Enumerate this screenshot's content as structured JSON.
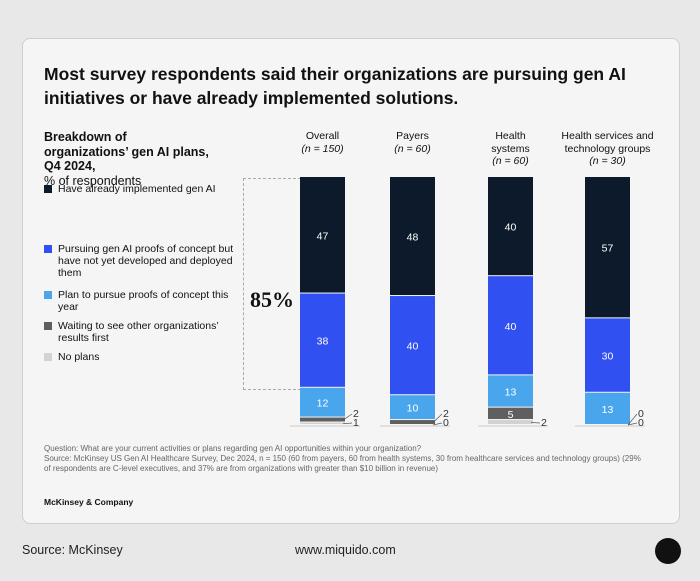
{
  "title": "Most survey respondents said their organizations are pursuing gen AI initiatives or have already implemented solutions.",
  "subtitle_bold": "Breakdown of organizations’ gen AI plans, Q4 2024,",
  "subtitle_unit": "% of respondents",
  "highlight": "85%",
  "notes": {
    "question": "Question: What are your current activities or plans regarding gen AI opportunities within your organization?",
    "source": "Source: McKinsey US Gen AI Healthcare Survey, Dec 2024, n = 150 (60 from payers, 60 from health systems, 30 from healthcare services and technology groups) (29% of respondents are C-level executives, and 37% are from organizations with greater than $10 billion in revenue)"
  },
  "brand": "McKinsey & Company",
  "footer": {
    "source": "Source: McKinsey",
    "url": "www.miquido.com"
  },
  "chart_data": {
    "type": "bar",
    "stacked": true,
    "ylabel": "% of respondents",
    "categories": [
      {
        "name": "Overall",
        "n": "(n = 150)"
      },
      {
        "name": "Payers",
        "n": "(n = 60)"
      },
      {
        "name": "Health systems",
        "n": "(n = 60)"
      },
      {
        "name": "Health services and technology groups",
        "n": "(n = 30)"
      }
    ],
    "series": [
      {
        "name": "Have already implemented gen AI",
        "color": "#0c1a2c",
        "values": [
          47,
          48,
          40,
          57
        ]
      },
      {
        "name": "Pursuing gen AI proofs of concept but have not yet developed and deployed them",
        "color": "#3050f2",
        "values": [
          38,
          40,
          40,
          30
        ]
      },
      {
        "name": "Plan to pursue proofs of concept this year",
        "color": "#4aa6ec",
        "values": [
          12,
          10,
          13,
          13
        ]
      },
      {
        "name": "Waiting to see other organizations’ results first",
        "color": "#5f5f5f",
        "values": [
          2,
          2,
          5,
          0
        ]
      },
      {
        "name": "No plans",
        "color": "#d2d2d2",
        "values": [
          1,
          0,
          2,
          0
        ]
      }
    ]
  }
}
